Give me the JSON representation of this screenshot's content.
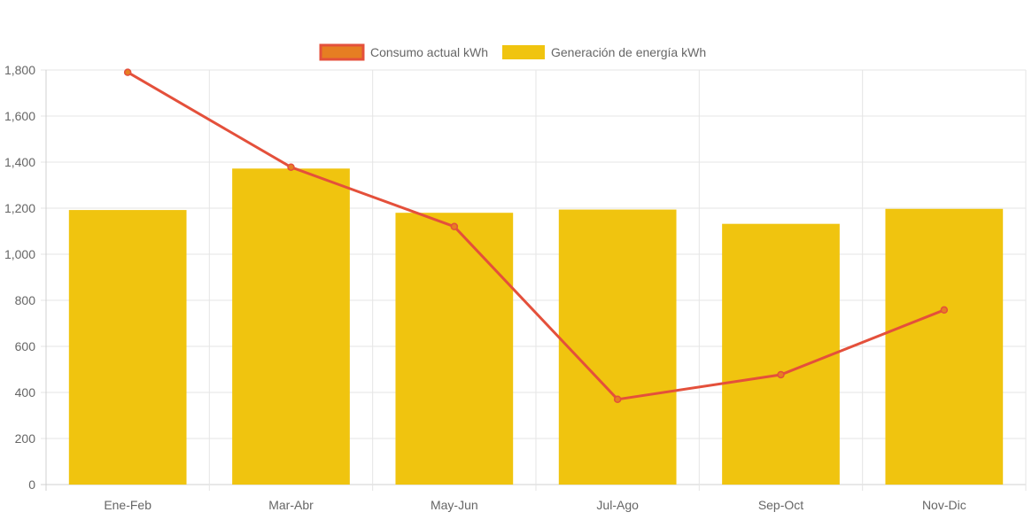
{
  "chart_data": {
    "type": "bar",
    "categories": [
      "Ene-Feb",
      "Mar-Abr",
      "May-Jun",
      "Jul-Ago",
      "Sep-Oct",
      "Nov-Dic"
    ],
    "series": [
      {
        "name": "Consumo actual kWh",
        "type": "line",
        "color": "#e4503b",
        "point_fill": "#e67e22",
        "values": [
          1790,
          1378,
          1120,
          370,
          477,
          758
        ]
      },
      {
        "name": "Generación de energía kWh",
        "type": "bar",
        "color": "#f0c40f",
        "values": [
          1192,
          1372,
          1180,
          1194,
          1132,
          1197
        ]
      }
    ],
    "yticks": [
      "0",
      "200",
      "400",
      "600",
      "800",
      "1,000",
      "1,200",
      "1,400",
      "1,600",
      "1,800"
    ],
    "ylim": [
      0,
      1800
    ],
    "grid": true,
    "legend": "top-center"
  }
}
